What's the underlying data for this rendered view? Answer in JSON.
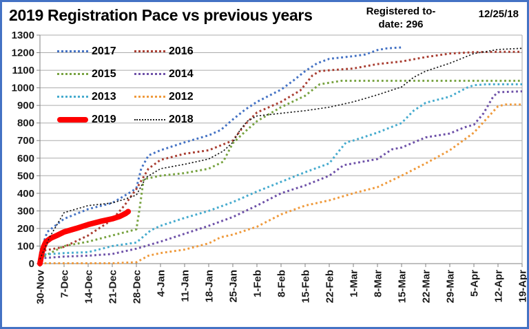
{
  "frame": {
    "border_color": "#4472C4",
    "background": "#FFFFFF"
  },
  "header": {
    "title": "2019 Registration Pace vs previous years",
    "registered_note": "Registered to-date: 296",
    "report_date": "12/25/18"
  },
  "chart_data": {
    "type": "line",
    "title": "2019 Registration Pace vs previous years",
    "annotation": "Registered to-date: 296",
    "as_of_date": "12/25/18",
    "x_tick_labels": [
      "30-Nov",
      "7-Dec",
      "14-Dec",
      "21-Dec",
      "28-Dec",
      "4-Jan",
      "11-Jan",
      "18-Jan",
      "25-Jan",
      "1-Feb",
      "8-Feb",
      "15-Feb",
      "22-Feb",
      "1-Mar",
      "8-Mar",
      "15-Mar",
      "22-Mar",
      "29-Mar",
      "5-Apr",
      "12-Apr",
      "19-Apr"
    ],
    "x_unit": "weeks since 30-Nov (fractional = days within week)",
    "ylim": [
      0,
      1300
    ],
    "y_tick_step": 100,
    "grid": true,
    "gridline_color": "#ABABAB",
    "axis_color": "#808080",
    "legend_position": "top-left inside plot, two columns",
    "series": [
      {
        "name": "2017",
        "color": "#4472C4",
        "style": "dotted",
        "points": [
          [
            0,
            60
          ],
          [
            0.3,
            180
          ],
          [
            1,
            255
          ],
          [
            2,
            310
          ],
          [
            3,
            345
          ],
          [
            3.8,
            410
          ],
          [
            4,
            430
          ],
          [
            4.2,
            540
          ],
          [
            4.5,
            615
          ],
          [
            5,
            645
          ],
          [
            6,
            690
          ],
          [
            7,
            730
          ],
          [
            7.5,
            760
          ],
          [
            8,
            820
          ],
          [
            8.5,
            875
          ],
          [
            9,
            920
          ],
          [
            10,
            990
          ],
          [
            10.5,
            1040
          ],
          [
            11,
            1095
          ],
          [
            11.5,
            1140
          ],
          [
            12,
            1165
          ],
          [
            13,
            1180
          ],
          [
            13.5,
            1190
          ],
          [
            14,
            1215
          ],
          [
            14.4,
            1225
          ],
          [
            15,
            1230
          ]
        ]
      },
      {
        "name": "2016",
        "color": "#A93E32",
        "style": "dotted",
        "points": [
          [
            0,
            70
          ],
          [
            1,
            95
          ],
          [
            2,
            160
          ],
          [
            3,
            250
          ],
          [
            3.5,
            330
          ],
          [
            4,
            425
          ],
          [
            4.5,
            540
          ],
          [
            5,
            590
          ],
          [
            6,
            625
          ],
          [
            7,
            645
          ],
          [
            8,
            700
          ],
          [
            8.5,
            790
          ],
          [
            9,
            860
          ],
          [
            10,
            920
          ],
          [
            10.8,
            985
          ],
          [
            11.3,
            1070
          ],
          [
            11.6,
            1095
          ],
          [
            12,
            1100
          ],
          [
            13,
            1110
          ],
          [
            14,
            1135
          ],
          [
            15,
            1150
          ],
          [
            16,
            1175
          ],
          [
            17,
            1195
          ],
          [
            18,
            1203
          ],
          [
            19,
            1205
          ],
          [
            20,
            1205
          ]
        ]
      },
      {
        "name": "2015",
        "color": "#78A341",
        "style": "dotted",
        "points": [
          [
            0,
            30
          ],
          [
            1,
            100
          ],
          [
            2,
            125
          ],
          [
            3,
            160
          ],
          [
            4,
            195
          ],
          [
            4.15,
            330
          ],
          [
            4.3,
            480
          ],
          [
            5,
            500
          ],
          [
            6,
            515
          ],
          [
            7,
            540
          ],
          [
            7.6,
            580
          ],
          [
            8,
            685
          ],
          [
            8.5,
            750
          ],
          [
            9,
            810
          ],
          [
            10,
            890
          ],
          [
            11,
            955
          ],
          [
            11.6,
            1020
          ],
          [
            12.5,
            1040
          ],
          [
            20,
            1040
          ]
        ]
      },
      {
        "name": "2014",
        "color": "#6E51A8",
        "style": "dotted",
        "points": [
          [
            0,
            30
          ],
          [
            1,
            40
          ],
          [
            2,
            45
          ],
          [
            3,
            55
          ],
          [
            4,
            85
          ],
          [
            5,
            125
          ],
          [
            6,
            170
          ],
          [
            7,
            215
          ],
          [
            8,
            265
          ],
          [
            9,
            330
          ],
          [
            10,
            400
          ],
          [
            11,
            445
          ],
          [
            12,
            500
          ],
          [
            12.6,
            560
          ],
          [
            13,
            570
          ],
          [
            14,
            595
          ],
          [
            14.6,
            650
          ],
          [
            15,
            660
          ],
          [
            16,
            718
          ],
          [
            17,
            740
          ],
          [
            17.6,
            775
          ],
          [
            18,
            790
          ],
          [
            18.4,
            855
          ],
          [
            18.8,
            950
          ],
          [
            19,
            975
          ],
          [
            20,
            980
          ]
        ]
      },
      {
        "name": "2013",
        "color": "#46ABCE",
        "style": "dotted",
        "points": [
          [
            0,
            50
          ],
          [
            1,
            60
          ],
          [
            2,
            65
          ],
          [
            3,
            100
          ],
          [
            4,
            120
          ],
          [
            4.6,
            190
          ],
          [
            5,
            215
          ],
          [
            6,
            260
          ],
          [
            7,
            300
          ],
          [
            8,
            350
          ],
          [
            9,
            410
          ],
          [
            10,
            465
          ],
          [
            11,
            520
          ],
          [
            12,
            570
          ],
          [
            12.4,
            640
          ],
          [
            12.7,
            690
          ],
          [
            13,
            700
          ],
          [
            14,
            745
          ],
          [
            15,
            800
          ],
          [
            15.5,
            870
          ],
          [
            16,
            915
          ],
          [
            17,
            950
          ],
          [
            17.7,
            1000
          ],
          [
            18,
            1015
          ],
          [
            18.5,
            1020
          ],
          [
            20,
            1020
          ]
        ]
      },
      {
        "name": "2012",
        "color": "#EF9A3C",
        "style": "dotted",
        "points": [
          [
            0,
            2
          ],
          [
            3,
            2
          ],
          [
            4,
            8
          ],
          [
            4.5,
            45
          ],
          [
            5,
            60
          ],
          [
            6,
            80
          ],
          [
            7,
            115
          ],
          [
            7.5,
            150
          ],
          [
            8,
            165
          ],
          [
            9,
            210
          ],
          [
            10,
            280
          ],
          [
            11,
            330
          ],
          [
            12,
            360
          ],
          [
            13,
            400
          ],
          [
            14,
            435
          ],
          [
            15,
            500
          ],
          [
            16,
            570
          ],
          [
            17,
            645
          ],
          [
            18,
            745
          ],
          [
            18.7,
            850
          ],
          [
            19,
            895
          ],
          [
            19.3,
            905
          ],
          [
            20,
            905
          ]
        ]
      },
      {
        "name": "2019",
        "color": "#FE0000",
        "style": "solid-thick",
        "points": [
          [
            0,
            0
          ],
          [
            0.08,
            60
          ],
          [
            0.15,
            95
          ],
          [
            0.25,
            125
          ],
          [
            0.45,
            145
          ],
          [
            0.7,
            160
          ],
          [
            1,
            180
          ],
          [
            1.5,
            200
          ],
          [
            2,
            222
          ],
          [
            2.5,
            240
          ],
          [
            3,
            255
          ],
          [
            3.3,
            268
          ],
          [
            3.55,
            285
          ],
          [
            3.66,
            296
          ]
        ]
      },
      {
        "name": "2018",
        "color": "#1A1A1A",
        "style": "fine-dotted",
        "points": [
          [
            0,
            25
          ],
          [
            0.4,
            150
          ],
          [
            1,
            290
          ],
          [
            2,
            330
          ],
          [
            3,
            345
          ],
          [
            3.6,
            370
          ],
          [
            4,
            390
          ],
          [
            4.4,
            490
          ],
          [
            5,
            540
          ],
          [
            6,
            565
          ],
          [
            7,
            595
          ],
          [
            7.6,
            640
          ],
          [
            8,
            690
          ],
          [
            8.3,
            760
          ],
          [
            8.6,
            810
          ],
          [
            9,
            840
          ],
          [
            10,
            855
          ],
          [
            11,
            870
          ],
          [
            12,
            890
          ],
          [
            13,
            920
          ],
          [
            14,
            960
          ],
          [
            15,
            1005
          ],
          [
            15.5,
            1060
          ],
          [
            16,
            1095
          ],
          [
            17,
            1140
          ],
          [
            18,
            1195
          ],
          [
            19,
            1218
          ],
          [
            20,
            1225
          ]
        ]
      }
    ]
  }
}
